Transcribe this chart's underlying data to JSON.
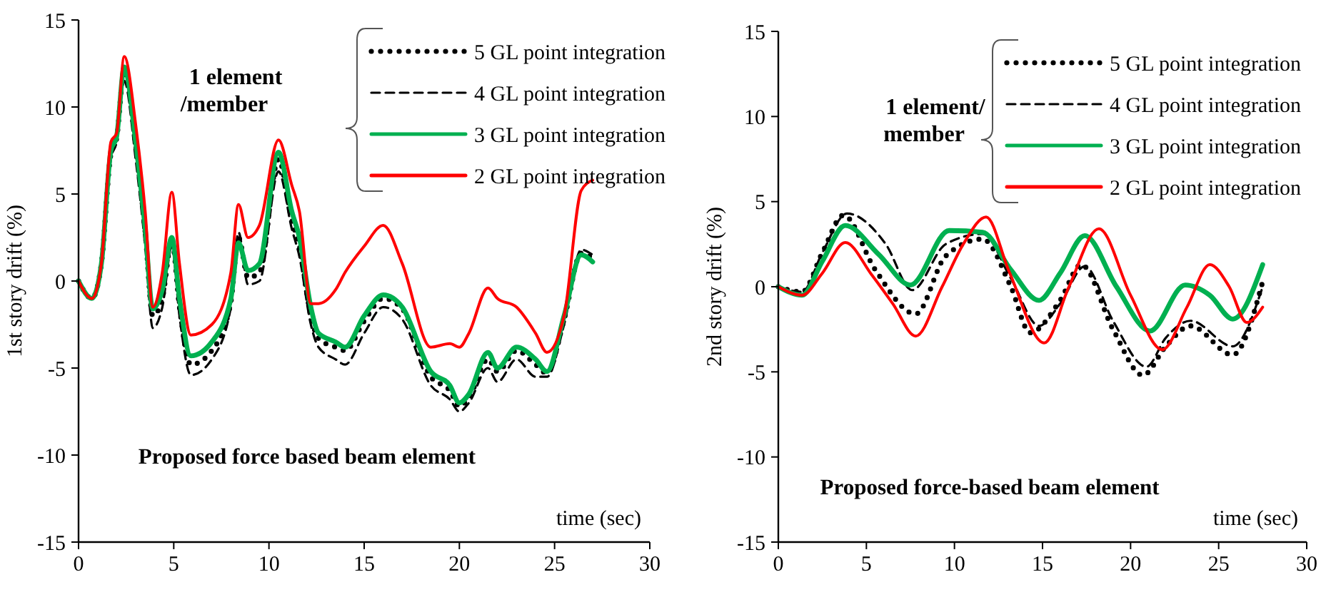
{
  "chart_data": [
    {
      "type": "line",
      "ylabel": "1st story drift (%)",
      "xlabel": "time (sec)",
      "xlim": [
        0,
        30
      ],
      "xticks": [
        0,
        5,
        10,
        15,
        20,
        25,
        30
      ],
      "ylim": [
        -15,
        15
      ],
      "yticks": [
        -15,
        -10,
        -5,
        0,
        5,
        10,
        15
      ],
      "grid": false,
      "legend": "top right",
      "marker": "none",
      "annotations": [
        "1 element /member",
        "Proposed force based beam element"
      ],
      "x": [
        0,
        0.7,
        1.2,
        1.7,
        2,
        2.4,
        3,
        3.5,
        3.9,
        4.4,
        4.9,
        5.3,
        5.9,
        7,
        8,
        8.4,
        8.9,
        9.5,
        10.5,
        11.2,
        11.6,
        12.2,
        12.6,
        13.5,
        14,
        15,
        16,
        17,
        18.5,
        19.5,
        20,
        20.5,
        21.5,
        22,
        23,
        24,
        24.6,
        25.5,
        26.4,
        27
      ],
      "series": [
        {
          "name": "5 GL point integration",
          "color": "#000000",
          "line_style": "dotted",
          "values": [
            0,
            -1,
            1,
            7.3,
            8.2,
            12.1,
            7.8,
            2.8,
            -2,
            -1,
            2.3,
            -1.5,
            -4.8,
            -4,
            -1.2,
            2.5,
            0.2,
            0.5,
            7,
            3.5,
            2,
            -2,
            -3.3,
            -3.8,
            -4,
            -2.3,
            -1,
            -1.6,
            -5.5,
            -6.3,
            -7.2,
            -6.7,
            -4.5,
            -5.2,
            -4,
            -4.8,
            -5.3,
            -2.2,
            1.6,
            1.3
          ]
        },
        {
          "name": "4 GL point integration",
          "color": "#000000",
          "line_style": "dashed",
          "values": [
            0,
            -1,
            0.9,
            7,
            8,
            11.5,
            7,
            2,
            -2.7,
            -1.5,
            2,
            -2,
            -5.4,
            -4.5,
            -1.5,
            2.8,
            -0.2,
            0,
            6.3,
            3,
            1.4,
            -2.5,
            -3.8,
            -4.5,
            -4.8,
            -3,
            -1.5,
            -2.2,
            -6,
            -6.8,
            -7.5,
            -7,
            -5,
            -5.8,
            -4.5,
            -5.5,
            -5.5,
            -2.5,
            1.8,
            1.5
          ]
        },
        {
          "name": "3 GL point integration",
          "color": "#00b050",
          "line_style": "solid",
          "values": [
            0,
            -1,
            1,
            7.5,
            8.3,
            12.3,
            8,
            3,
            -1.6,
            -0.5,
            2.5,
            -1,
            -4.3,
            -3.5,
            -1,
            2.2,
            0.6,
            1,
            7.4,
            4,
            2.5,
            -1.5,
            -3,
            -3.5,
            -3.8,
            -2,
            -0.8,
            -1.5,
            -5.2,
            -6,
            -7,
            -6.5,
            -4.1,
            -5,
            -3.8,
            -4.5,
            -5.2,
            -2,
            1.5,
            1.1
          ]
        },
        {
          "name": "2 GL point integration",
          "color": "#ff0000",
          "line_style": "solid",
          "values": [
            0,
            -1,
            1,
            8,
            8.5,
            12.9,
            9,
            4,
            -1.5,
            0.5,
            5.1,
            1,
            -3.1,
            -2.5,
            0.5,
            4.4,
            2.5,
            3.2,
            8.1,
            5.5,
            4,
            -1.3,
            -1.3,
            -0.5,
            0.5,
            2,
            3.2,
            1,
            -3.8,
            -3.6,
            -3.8,
            -3,
            -0.4,
            -1,
            -1.5,
            -3,
            -4.1,
            -2,
            5.2,
            5.8
          ]
        }
      ]
    },
    {
      "type": "line",
      "ylabel": "2nd story drift (%)",
      "xlabel": "time (sec)",
      "xlim": [
        0,
        30
      ],
      "xticks": [
        0,
        5,
        10,
        15,
        20,
        25,
        30
      ],
      "ylim": [
        -15,
        15
      ],
      "yticks": [
        -15,
        -10,
        -5,
        0,
        5,
        10,
        15
      ],
      "grid": false,
      "legend": "top right",
      "marker": "none",
      "annotations": [
        "1 element/ member",
        "Proposed force-based beam element"
      ],
      "series": [
        {
          "name": "5 GL point integration",
          "color": "#000000",
          "line_style": "dotted",
          "x": [
            0,
            1.35,
            2.5,
            3.7,
            5.5,
            7.8,
            9.5,
            11.6,
            13.2,
            14.3,
            16,
            17.2,
            19,
            20.7,
            22,
            23.4,
            25.8,
            27.5
          ],
          "values": [
            0,
            -0.3,
            2,
            4.2,
            1,
            -1.6,
            1.8,
            2.8,
            0,
            -2.7,
            -0.8,
            1.3,
            -2.5,
            -5.2,
            -3.5,
            -2.3,
            -4,
            0.3
          ]
        },
        {
          "name": "4 GL point integration",
          "color": "#000000",
          "line_style": "dashed",
          "x": [
            0,
            1.35,
            2.5,
            3.9,
            6.1,
            7.6,
            9.5,
            11.6,
            13.2,
            14.8,
            16,
            17.4,
            19,
            20.9,
            22,
            23.4,
            25.8,
            27.5
          ],
          "values": [
            0,
            -0.3,
            2,
            4.3,
            2.5,
            -0.2,
            2.5,
            3.1,
            0.5,
            -2.3,
            -1,
            1.2,
            -2,
            -4.7,
            -3,
            -2,
            -3.5,
            0
          ]
        },
        {
          "name": "3 GL point integration",
          "color": "#00b050",
          "line_style": "solid",
          "x": [
            0,
            1.35,
            2.5,
            3.8,
            5.7,
            7.5,
            9.7,
            11.6,
            13.2,
            14.8,
            16,
            17.4,
            19.2,
            21.1,
            23.1,
            24.5,
            25.8,
            27.5
          ],
          "values": [
            0,
            -0.5,
            1.5,
            3.6,
            1.9,
            0.1,
            3.3,
            3.2,
            1,
            -0.8,
            0.8,
            3,
            0,
            -2.6,
            0.1,
            -0.5,
            -1.9,
            1.3
          ]
        },
        {
          "name": "2 GL point integration",
          "color": "#ff0000",
          "line_style": "solid",
          "x": [
            0,
            1.35,
            2.5,
            3.8,
            5.3,
            6.5,
            7.8,
            9.3,
            10.5,
            11.8,
            13.1,
            15.1,
            16.5,
            18.2,
            20,
            21.8,
            23.2,
            24.5,
            25.6,
            26.6,
            27.5
          ],
          "values": [
            0,
            -0.5,
            0.8,
            2.6,
            0.7,
            -1,
            -2.9,
            0,
            2.5,
            4.1,
            0.9,
            -3.3,
            0,
            3.4,
            -0.5,
            -3.7,
            -1.2,
            1.3,
            0,
            -2.1,
            -1.2
          ]
        }
      ]
    }
  ]
}
